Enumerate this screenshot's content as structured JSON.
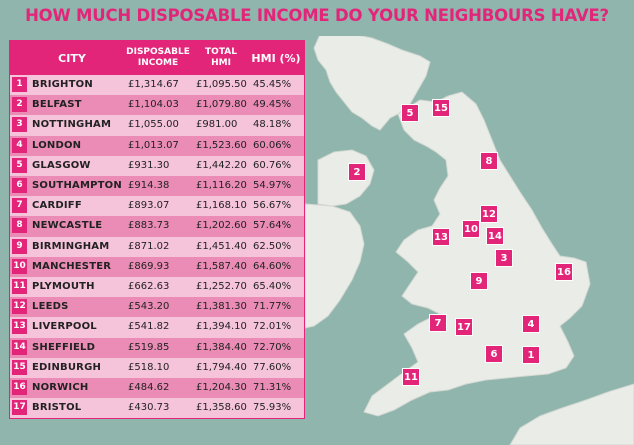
{
  "title": "HOW MUCH DISPOSABLE INCOME DO YOUR NEIGHBOURS HAVE?",
  "table": {
    "headers": {
      "city": "CITY",
      "disposable_line1": "DISPOSABLE",
      "disposable_line2": "INCOME",
      "total_line1": "TOTAL",
      "total_line2": "HMI",
      "hmi": "HMI (%)"
    },
    "rows": [
      {
        "rank": "1",
        "city": "BRIGHTON",
        "disposable": "£1,314.67",
        "total": "£1,095.50",
        "hmi": "45.45%"
      },
      {
        "rank": "2",
        "city": "BELFAST",
        "disposable": "£1,104.03",
        "total": "£1,079.80",
        "hmi": "49.45%"
      },
      {
        "rank": "3",
        "city": "NOTTINGHAM",
        "disposable": "£1,055.00",
        "total": "£981.00",
        "hmi": "48.18%"
      },
      {
        "rank": "4",
        "city": "LONDON",
        "disposable": "£1,013.07",
        "total": "£1,523.60",
        "hmi": "60.06%"
      },
      {
        "rank": "5",
        "city": "GLASGOW",
        "disposable": "£931.30",
        "total": "£1,442.20",
        "hmi": "60.76%"
      },
      {
        "rank": "6",
        "city": "SOUTHAMPTON",
        "disposable": "£914.38",
        "total": "£1,116.20",
        "hmi": "54.97%"
      },
      {
        "rank": "7",
        "city": "CARDIFF",
        "disposable": "£893.07",
        "total": "£1,168.10",
        "hmi": "56.67%"
      },
      {
        "rank": "8",
        "city": "NEWCASTLE",
        "disposable": "£883.73",
        "total": "£1,202.60",
        "hmi": "57.64%"
      },
      {
        "rank": "9",
        "city": "BIRMINGHAM",
        "disposable": "£871.02",
        "total": "£1,451.40",
        "hmi": "62.50%"
      },
      {
        "rank": "10",
        "city": "MANCHESTER",
        "disposable": "£869.93",
        "total": "£1,587.40",
        "hmi": "64.60%"
      },
      {
        "rank": "11",
        "city": "PLYMOUTH",
        "disposable": "£662.63",
        "total": "£1,252.70",
        "hmi": "65.40%"
      },
      {
        "rank": "12",
        "city": "LEEDS",
        "disposable": "£543.20",
        "total": "£1,381.30",
        "hmi": "71.77%"
      },
      {
        "rank": "13",
        "city": "LIVERPOOL",
        "disposable": "£541.82",
        "total": "£1,394.10",
        "hmi": "72.01%"
      },
      {
        "rank": "14",
        "city": "SHEFFIELD",
        "disposable": "£519.85",
        "total": "£1,384.40",
        "hmi": "72.70%"
      },
      {
        "rank": "15",
        "city": "EDINBURGH",
        "disposable": "£518.10",
        "total": "£1,794.40",
        "hmi": "77.60%"
      },
      {
        "rank": "16",
        "city": "NORWICH",
        "disposable": "£484.62",
        "total": "£1,204.30",
        "hmi": "71.31%"
      },
      {
        "rank": "17",
        "city": "BRISTOL",
        "disposable": "£430.73",
        "total": "£1,358.60",
        "hmi": "75.93%"
      }
    ]
  },
  "map": {
    "markers": [
      "1",
      "2",
      "3",
      "4",
      "5",
      "6",
      "7",
      "8",
      "9",
      "10",
      "11",
      "12",
      "13",
      "14",
      "15",
      "16",
      "17"
    ]
  },
  "colors": {
    "accent": "#e3257a",
    "row_light": "#f6c4da",
    "row_dark": "#ea8cb5",
    "sea": "#8fb5ad",
    "land": "#e9ece7"
  }
}
